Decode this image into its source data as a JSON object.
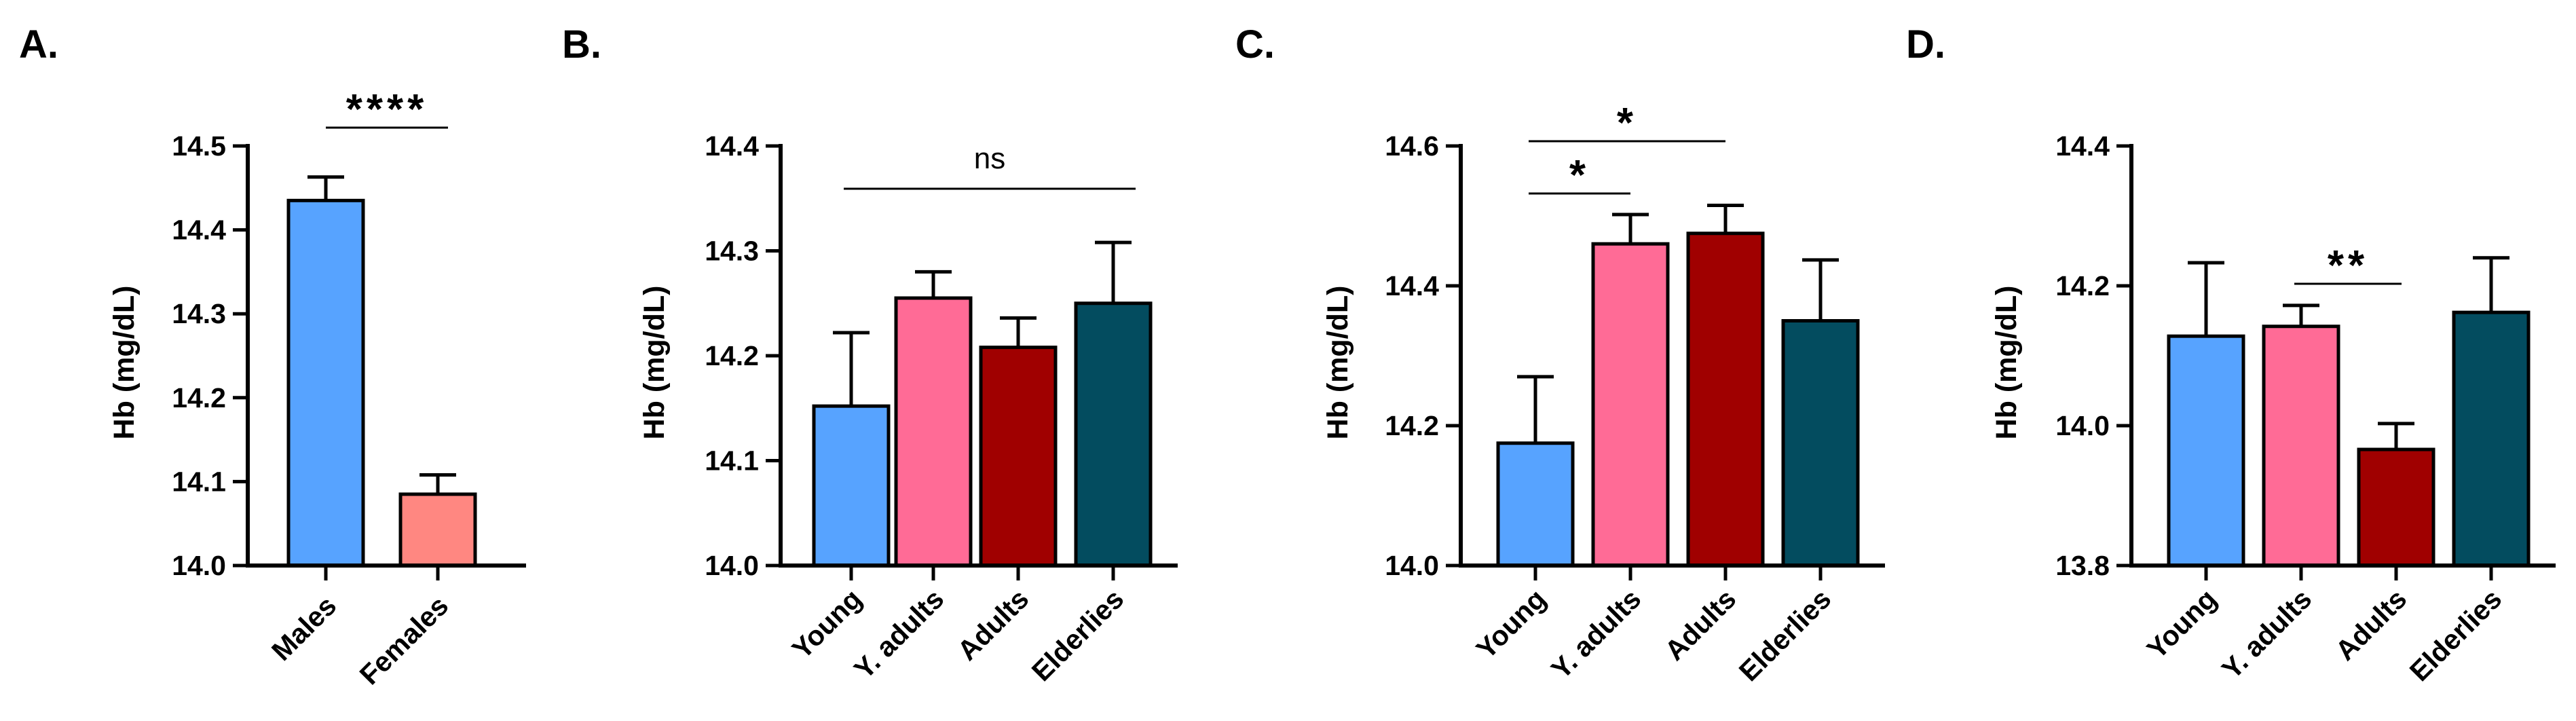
{
  "chart_data": [
    {
      "type": "bar",
      "panel": "A.",
      "ylabel": "Hb (mg/dL)",
      "ylim": [
        14.0,
        14.5
      ],
      "yticks": [
        "14.0",
        "14.1",
        "14.2",
        "14.3",
        "14.4",
        "14.5"
      ],
      "categories": [
        "Males",
        "Females"
      ],
      "values": [
        14.435,
        14.085
      ],
      "errors": [
        0.028,
        0.023
      ],
      "colors": [
        "#57A3FF",
        "#FF8781"
      ],
      "significance": [
        {
          "from": 0,
          "to": 1,
          "label": "****"
        }
      ]
    },
    {
      "type": "bar",
      "panel": "B.",
      "ylabel": "Hb (mg/dL)",
      "ylim": [
        14.0,
        14.4
      ],
      "yticks": [
        "14.0",
        "14.1",
        "14.2",
        "14.3",
        "14.4"
      ],
      "categories": [
        "Young",
        "Y. adults",
        "Adults",
        "Elderlies"
      ],
      "values": [
        14.152,
        14.255,
        14.208,
        14.25
      ],
      "errors": [
        0.07,
        0.025,
        0.028,
        0.058
      ],
      "colors": [
        "#57A3FF",
        "#FF6B96",
        "#A00000",
        "#034C5F"
      ],
      "significance": [
        {
          "from": 0,
          "to": 3,
          "label": "ns"
        }
      ]
    },
    {
      "type": "bar",
      "panel": "C.",
      "ylabel": "Hb (mg/dL)",
      "ylim": [
        14.0,
        14.6
      ],
      "yticks": [
        "14.0",
        "14.2",
        "14.4",
        "14.6"
      ],
      "categories": [
        "Young",
        "Y. adults",
        "Adults",
        "Elderlies"
      ],
      "values": [
        14.175,
        14.46,
        14.475,
        14.35
      ],
      "errors": [
        0.095,
        0.042,
        0.04,
        0.087
      ],
      "colors": [
        "#57A3FF",
        "#FF6B96",
        "#A00000",
        "#034C5F"
      ],
      "significance": [
        {
          "from": 0,
          "to": 1,
          "label": "*"
        },
        {
          "from": 0,
          "to": 2,
          "label": "*"
        }
      ]
    },
    {
      "type": "bar",
      "panel": "D.",
      "ylabel": "Hb (mg/dL)",
      "ylim": [
        13.8,
        14.4
      ],
      "yticks": [
        "13.8",
        "14.0",
        "14.2",
        "14.4"
      ],
      "categories": [
        "Young",
        "Y. adults",
        "Adults",
        "Elderlies"
      ],
      "values": [
        14.128,
        14.142,
        13.966,
        14.162
      ],
      "errors": [
        0.105,
        0.03,
        0.037,
        0.078
      ],
      "colors": [
        "#57A3FF",
        "#FF6B96",
        "#A00000",
        "#034C5F"
      ],
      "significance": [
        {
          "from": 1,
          "to": 2,
          "label": "**"
        }
      ]
    }
  ]
}
